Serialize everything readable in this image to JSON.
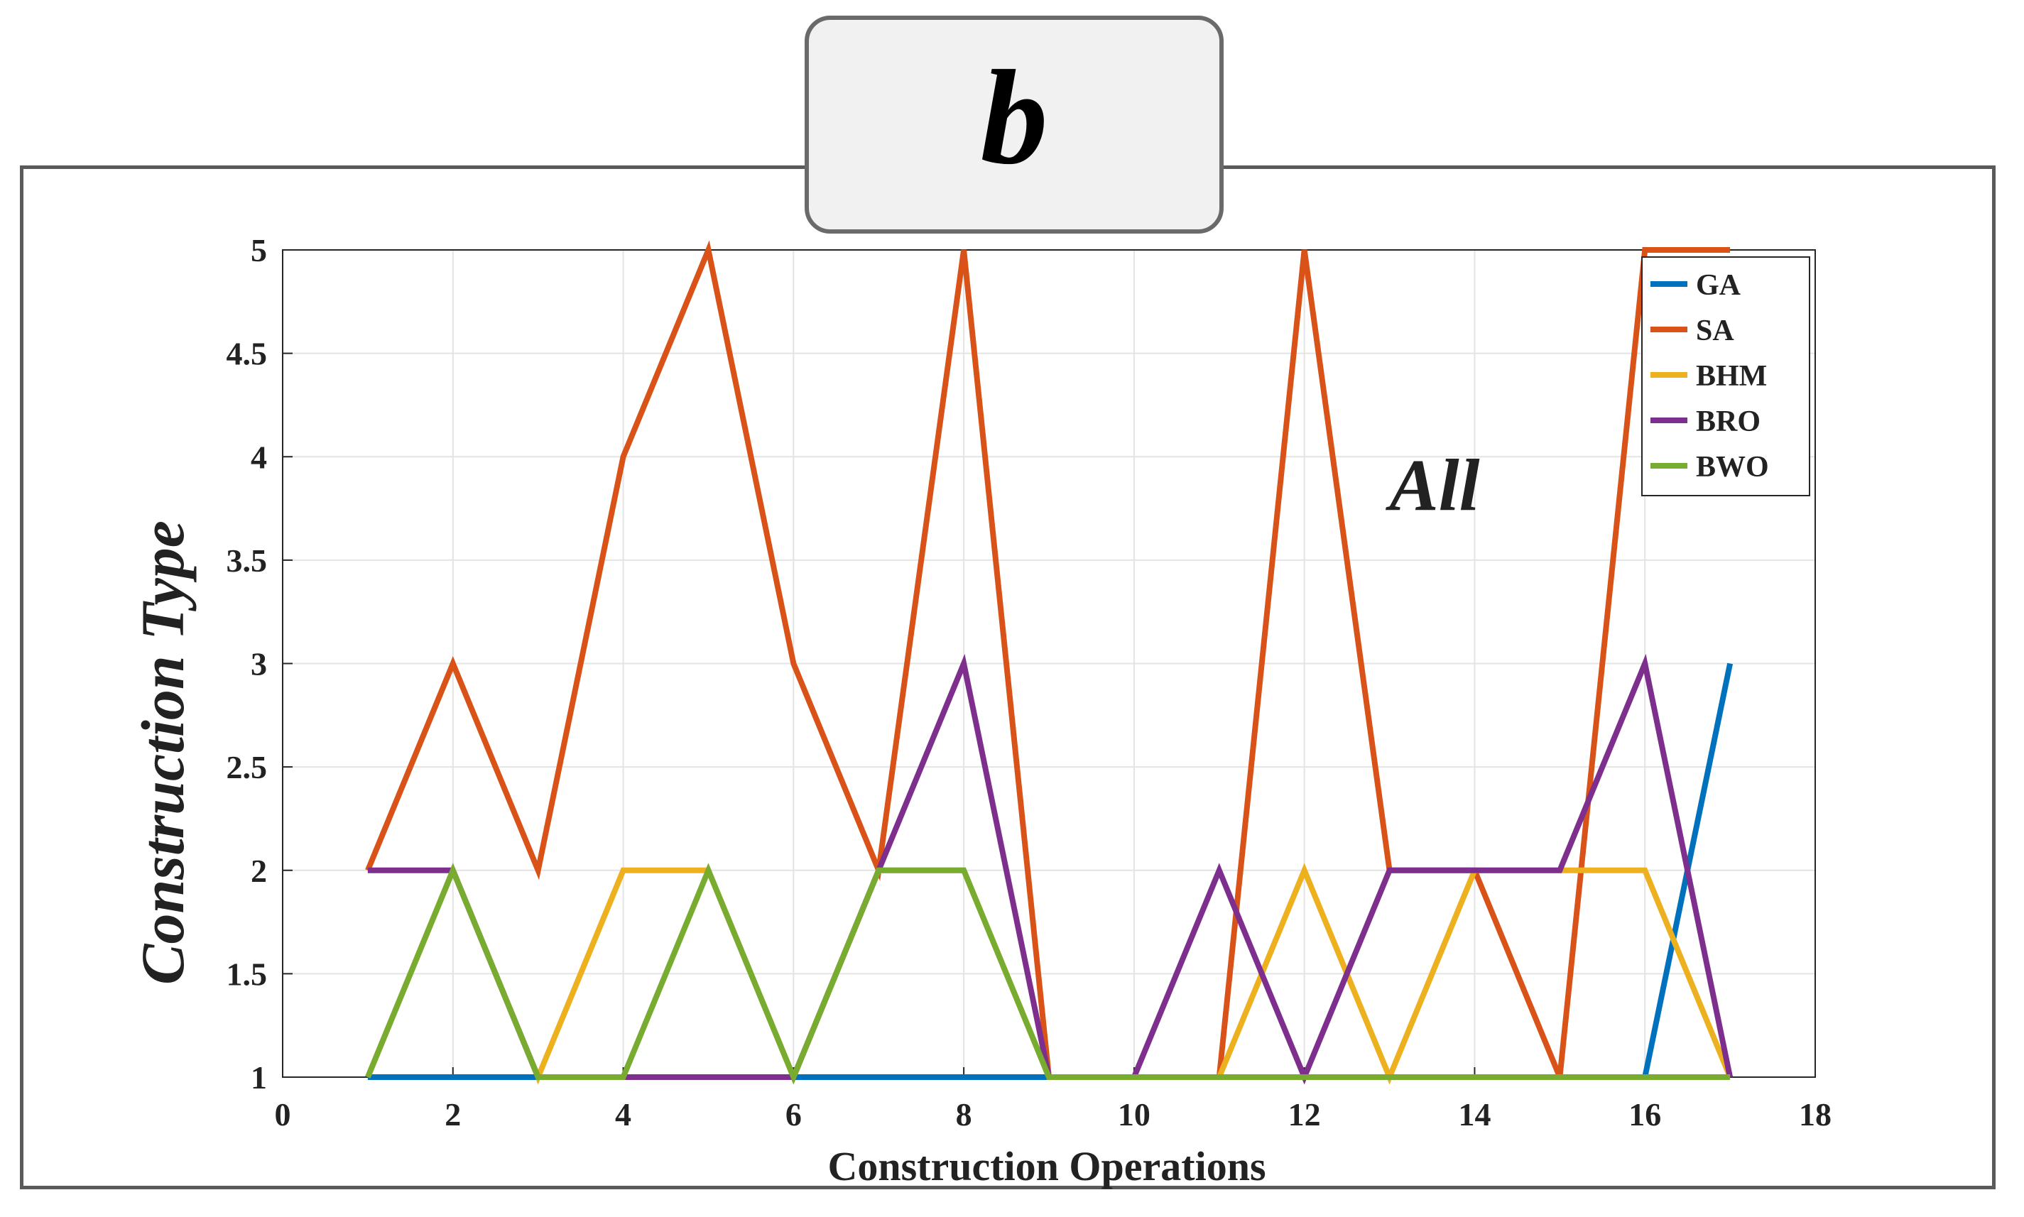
{
  "panel": {
    "label": "b"
  },
  "chart_data": {
    "type": "line",
    "title": "",
    "annotation": "All",
    "xlabel": "Construction Operations",
    "ylabel": "Construction Type",
    "xlim": [
      0,
      18
    ],
    "ylim": [
      1,
      5
    ],
    "xticks": [
      0,
      2,
      4,
      6,
      8,
      10,
      12,
      14,
      16,
      18
    ],
    "yticks": [
      1,
      1.5,
      2,
      2.5,
      3,
      3.5,
      4,
      4.5,
      5
    ],
    "xtick_labels": [
      "0",
      "2",
      "4",
      "6",
      "8",
      "10",
      "12",
      "14",
      "16",
      "18"
    ],
    "ytick_labels": [
      "1",
      "1.5",
      "2",
      "2.5",
      "3",
      "3.5",
      "4",
      "4.5",
      "5"
    ],
    "grid": true,
    "legend_position": "top-right",
    "x": [
      1,
      2,
      3,
      4,
      5,
      6,
      7,
      8,
      9,
      10,
      11,
      12,
      13,
      14,
      15,
      16,
      17
    ],
    "series": [
      {
        "name": "GA",
        "color": "#0072BD",
        "values": [
          1,
          1,
          1,
          1,
          1,
          1,
          1,
          1,
          1,
          1,
          1,
          1,
          1,
          1,
          1,
          1,
          3
        ]
      },
      {
        "name": "SA",
        "color": "#D95319",
        "values": [
          2,
          3,
          2,
          4,
          5,
          3,
          2,
          5,
          1,
          1,
          1,
          5,
          2,
          2,
          1,
          5,
          5
        ]
      },
      {
        "name": "BHM",
        "color": "#EDB120",
        "values": [
          1,
          2,
          1,
          2,
          2,
          1,
          2,
          2,
          1,
          1,
          1,
          2,
          1,
          2,
          2,
          2,
          1
        ]
      },
      {
        "name": "BRO",
        "color": "#7E2F8E",
        "values": [
          2,
          2,
          1,
          1,
          1,
          1,
          2,
          3,
          1,
          1,
          2,
          1,
          2,
          2,
          2,
          3,
          1
        ]
      },
      {
        "name": "BWO",
        "color": "#77AC30",
        "values": [
          1,
          2,
          1,
          1,
          2,
          1,
          2,
          2,
          1,
          1,
          1,
          1,
          1,
          1,
          1,
          1,
          1
        ]
      }
    ]
  }
}
